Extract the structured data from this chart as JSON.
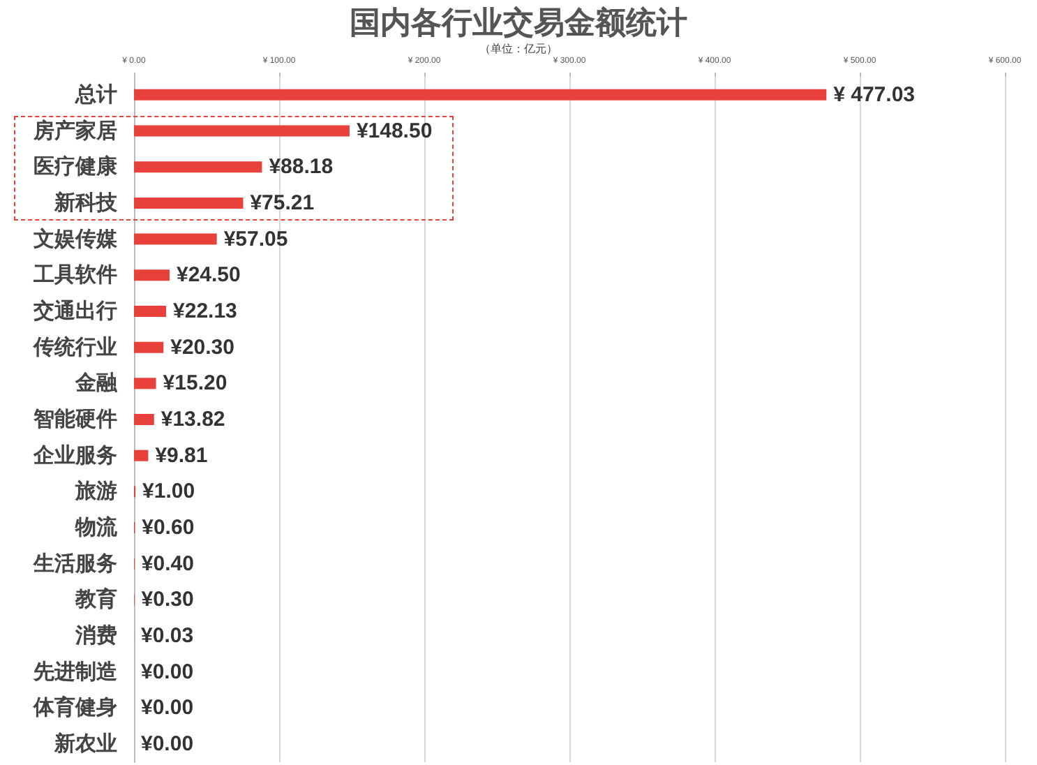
{
  "chart_data": {
    "type": "bar",
    "orientation": "horizontal",
    "title": "国内各行业交易金额统计",
    "subtitle": "（单位：亿元）",
    "categories": [
      "总计",
      "房产家居",
      "医疗健康",
      "新科技",
      "文娱传媒",
      "工具软件",
      "交通出行",
      "传统行业",
      "金融",
      "智能硬件",
      "企业服务",
      "旅游",
      "物流",
      "生活服务",
      "教育",
      "消费",
      "先进制造",
      "体育健身",
      "新农业"
    ],
    "values": [
      477.03,
      148.5,
      88.18,
      75.21,
      57.05,
      24.5,
      22.13,
      20.3,
      15.2,
      13.82,
      9.81,
      1.0,
      0.6,
      0.4,
      0.3,
      0.03,
      0,
      0,
      0
    ],
    "value_labels": [
      "¥ 477.03",
      "¥148.50",
      "¥88.18",
      "¥75.21",
      "¥57.05",
      "¥24.50",
      "¥22.13",
      "¥20.30",
      "¥15.20",
      "¥13.82",
      "¥9.81",
      "¥1.00",
      "¥0.60",
      "¥0.40",
      "¥0.30",
      "¥0.03",
      "¥0.00",
      "¥0.00",
      "¥0.00"
    ],
    "color": "#e8403a",
    "xlim": [
      0,
      600
    ],
    "xticks": [
      {
        "value": 0,
        "label": "¥ 0.00"
      },
      {
        "value": 100,
        "label": "¥ 100.00"
      },
      {
        "value": 200,
        "label": "¥ 200.00"
      },
      {
        "value": 300,
        "label": "¥ 300.00"
      },
      {
        "value": 400,
        "label": "¥ 400.00"
      },
      {
        "value": 500,
        "label": "¥ 500.00"
      },
      {
        "value": 600,
        "label": "¥ 600.00"
      }
    ],
    "grid": "x"
  }
}
